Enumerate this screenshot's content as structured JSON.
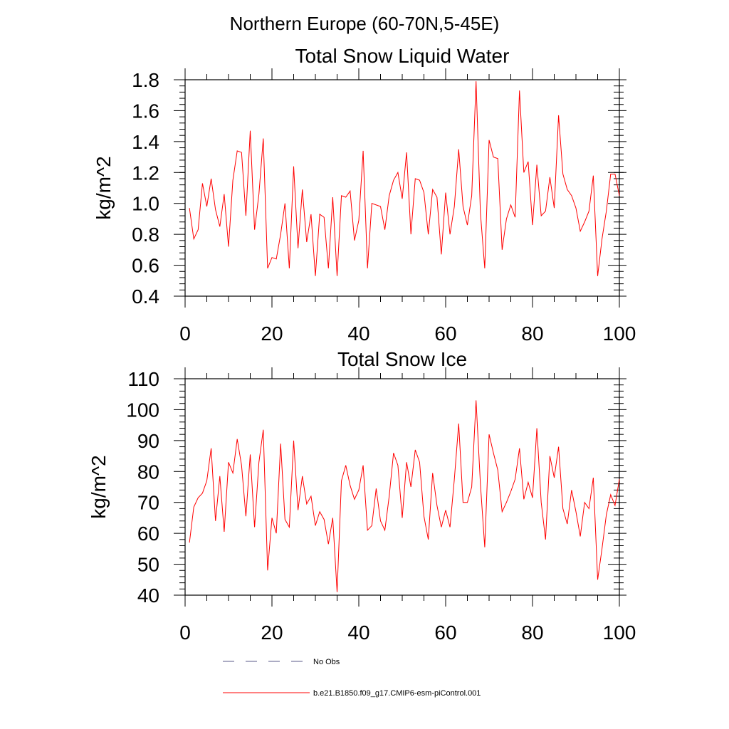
{
  "figure": {
    "region_title": "Northern Europe (60-70N,5-45E)"
  },
  "legend": {
    "entries": [
      {
        "label": "No Obs",
        "style": "dashed",
        "color": "#5a5a8a"
      },
      {
        "label": "b.e21.B1850.f09_g17.CMIP6-esm-piControl.001",
        "style": "solid",
        "color": "#ff0000"
      }
    ]
  },
  "chart_data": [
    {
      "type": "line",
      "title": "Total Snow Liquid Water",
      "xlabel": "",
      "ylabel": "kg/m^2",
      "xlim": [
        0,
        100
      ],
      "ylim": [
        0.4,
        1.8
      ],
      "xticks": [
        0,
        20,
        40,
        60,
        80,
        100
      ],
      "xtick_labels": [
        "0",
        "20",
        "40",
        "60",
        "80",
        "100"
      ],
      "yticks": [
        0.4,
        0.6,
        0.8,
        1.0,
        1.2,
        1.4,
        1.6,
        1.8
      ],
      "ytick_labels": [
        "0.4",
        "0.6",
        "0.8",
        "1.0",
        "1.2",
        "1.4",
        "1.6",
        "1.8"
      ],
      "grid": false,
      "series": [
        {
          "name": "b.e21.B1850.f09_g17.CMIP6-esm-piControl.001",
          "color": "#ff0000",
          "x": [
            1,
            2,
            3,
            4,
            5,
            6,
            7,
            8,
            9,
            10,
            11,
            12,
            13,
            14,
            15,
            16,
            17,
            18,
            19,
            20,
            21,
            22,
            23,
            24,
            25,
            26,
            27,
            28,
            29,
            30,
            31,
            32,
            33,
            34,
            35,
            36,
            37,
            38,
            39,
            40,
            41,
            42,
            43,
            44,
            45,
            46,
            47,
            48,
            49,
            50,
            51,
            52,
            53,
            54,
            55,
            56,
            57,
            58,
            59,
            60,
            61,
            62,
            63,
            64,
            65,
            66,
            67,
            68,
            69,
            70,
            71,
            72,
            73,
            74,
            75,
            76,
            77,
            78,
            79,
            80,
            81,
            82,
            83,
            84,
            85,
            86,
            87,
            88,
            89,
            90,
            91,
            92,
            93,
            94,
            95,
            96,
            97,
            98,
            99,
            100
          ],
          "values": [
            0.97,
            0.77,
            0.83,
            1.13,
            0.98,
            1.16,
            0.96,
            0.85,
            1.06,
            0.72,
            1.15,
            1.34,
            1.33,
            0.92,
            1.47,
            0.83,
            1.06,
            1.42,
            0.58,
            0.65,
            0.64,
            0.8,
            1.0,
            0.58,
            1.24,
            0.71,
            1.09,
            0.75,
            0.93,
            0.53,
            0.93,
            0.91,
            0.58,
            1.04,
            0.53,
            1.05,
            1.04,
            1.08,
            0.76,
            0.89,
            1.34,
            0.58,
            1.0,
            0.99,
            0.98,
            0.83,
            1.05,
            1.15,
            1.2,
            1.03,
            1.33,
            0.8,
            1.16,
            1.15,
            1.07,
            0.8,
            1.09,
            1.04,
            0.67,
            1.07,
            0.8,
            0.98,
            1.35,
            0.98,
            0.86,
            1.05,
            1.79,
            0.94,
            0.58,
            1.41,
            1.3,
            1.29,
            0.7,
            0.9,
            0.99,
            0.91,
            1.73,
            1.2,
            1.27,
            0.86,
            1.25,
            0.92,
            0.95,
            1.17,
            0.97,
            1.57,
            1.19,
            1.09,
            1.05,
            0.97,
            0.82,
            0.88,
            0.95,
            1.18,
            0.53,
            0.77,
            0.95,
            1.19,
            1.19,
            1.05
          ]
        }
      ]
    },
    {
      "type": "line",
      "title": "Total Snow Ice",
      "xlabel": "",
      "ylabel": "kg/m^2",
      "xlim": [
        0,
        100
      ],
      "ylim": [
        40,
        110
      ],
      "xticks": [
        0,
        20,
        40,
        60,
        80,
        100
      ],
      "xtick_labels": [
        "0",
        "20",
        "40",
        "60",
        "80",
        "100"
      ],
      "yticks": [
        40,
        50,
        60,
        70,
        80,
        90,
        100,
        110
      ],
      "ytick_labels": [
        "40",
        "50",
        "60",
        "70",
        "80",
        "90",
        "100",
        "110"
      ],
      "grid": false,
      "series": [
        {
          "name": "b.e21.B1850.f09_g17.CMIP6-esm-piControl.001",
          "color": "#ff0000",
          "x": [
            1,
            2,
            3,
            4,
            5,
            6,
            7,
            8,
            9,
            10,
            11,
            12,
            13,
            14,
            15,
            16,
            17,
            18,
            19,
            20,
            21,
            22,
            23,
            24,
            25,
            26,
            27,
            28,
            29,
            30,
            31,
            32,
            33,
            34,
            35,
            36,
            37,
            38,
            39,
            40,
            41,
            42,
            43,
            44,
            45,
            46,
            47,
            48,
            49,
            50,
            51,
            52,
            53,
            54,
            55,
            56,
            57,
            58,
            59,
            60,
            61,
            62,
            63,
            64,
            65,
            66,
            67,
            68,
            69,
            70,
            71,
            72,
            73,
            74,
            75,
            76,
            77,
            78,
            79,
            80,
            81,
            82,
            83,
            84,
            85,
            86,
            87,
            88,
            89,
            90,
            91,
            92,
            93,
            94,
            95,
            96,
            97,
            98,
            99,
            100
          ],
          "values": [
            57,
            68.5,
            71.5,
            73,
            77,
            87.5,
            64,
            78.5,
            60.5,
            83,
            79.5,
            90.5,
            82,
            65.5,
            85.5,
            62,
            83,
            93.5,
            48,
            65,
            60,
            89,
            64.5,
            62,
            90,
            67.5,
            78.5,
            69.5,
            72,
            62.5,
            67,
            64.5,
            56.5,
            65,
            41,
            77,
            82,
            75.5,
            71,
            74,
            82,
            61,
            62.5,
            74.5,
            64,
            61,
            72,
            86,
            82,
            65,
            83,
            75,
            87,
            83,
            65.5,
            58,
            79.5,
            69,
            62,
            67.5,
            62,
            77.5,
            95.5,
            70,
            70,
            75,
            103,
            76,
            55.5,
            92,
            86,
            80.5,
            67,
            70,
            73.5,
            77.5,
            87.5,
            71,
            76.5,
            71.5,
            94,
            70,
            58,
            85,
            78,
            88,
            68,
            63,
            74,
            67,
            59,
            70,
            68,
            78,
            45,
            55,
            66,
            72.5,
            69,
            77.5
          ]
        }
      ]
    }
  ]
}
